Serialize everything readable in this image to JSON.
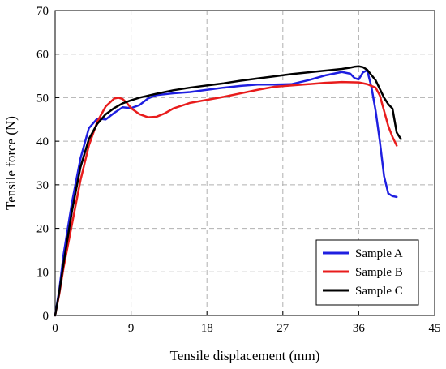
{
  "chart_data": {
    "type": "line",
    "title": "",
    "xlabel": "Tensile displacement (mm)",
    "ylabel": "Tensile force (N)",
    "xlim": [
      0,
      45
    ],
    "ylim": [
      0,
      70
    ],
    "xticks": [
      0,
      9,
      18,
      27,
      36,
      45
    ],
    "yticks": [
      0,
      10,
      20,
      30,
      40,
      50,
      60,
      70
    ],
    "grid": true,
    "grid_style": "dashed",
    "legend_position": "lower-right",
    "series": [
      {
        "name": "Sample A",
        "color": "#1f1fe0",
        "x": [
          0,
          0.5,
          1,
          2,
          3,
          4,
          5,
          6,
          7,
          8,
          9,
          10,
          11,
          12,
          14,
          16,
          18,
          20,
          22,
          24,
          26,
          28,
          30,
          32,
          34,
          35,
          35.5,
          36,
          36.5,
          37,
          37.5,
          38,
          38.5,
          39,
          39.5,
          40,
          40.5
        ],
        "y": [
          0,
          6,
          14,
          26,
          36,
          43,
          45.2,
          45,
          46.5,
          47.8,
          47.6,
          48.3,
          49.8,
          50.6,
          51,
          51.3,
          51.8,
          52.3,
          52.7,
          53,
          53,
          53.1,
          54,
          55.1,
          55.9,
          55.5,
          54.5,
          54.2,
          55.8,
          56.3,
          52.5,
          47,
          40,
          32,
          28,
          27.4,
          27.2
        ]
      },
      {
        "name": "Sample B",
        "color": "#e81c1c",
        "x": [
          0,
          0.5,
          1,
          2,
          3,
          4,
          5,
          6,
          7,
          7.5,
          8,
          8.5,
          9,
          10,
          11,
          12,
          13,
          14,
          16,
          18,
          20,
          22,
          24,
          26,
          28,
          30,
          32,
          34,
          36,
          37,
          38,
          38.5,
          39,
          39.5,
          40,
          40.5
        ],
        "y": [
          0,
          5,
          11,
          21,
          31,
          39,
          44.5,
          48,
          49.8,
          50,
          49.7,
          48.8,
          47.6,
          46.2,
          45.5,
          45.6,
          46.4,
          47.5,
          48.8,
          49.5,
          50.2,
          51,
          51.8,
          52.5,
          52.8,
          53.1,
          53.4,
          53.6,
          53.5,
          53.1,
          52.3,
          50.5,
          47,
          43.5,
          41,
          39
        ]
      },
      {
        "name": "Sample C",
        "color": "#000000",
        "x": [
          0,
          0.5,
          1,
          2,
          3,
          4,
          5,
          6,
          7,
          8,
          9,
          10,
          12,
          14,
          16,
          18,
          20,
          22,
          24,
          26,
          28,
          30,
          32,
          34,
          35,
          35.5,
          36,
          36.5,
          37,
          37.5,
          38,
          38.5,
          39,
          39.5,
          40,
          40.5,
          41
        ],
        "y": [
          0,
          5.5,
          12,
          24,
          34,
          40.5,
          44,
          46.2,
          47.6,
          48.7,
          49.4,
          50,
          50.9,
          51.7,
          52.3,
          52.8,
          53.3,
          53.9,
          54.4,
          54.9,
          55.4,
          55.8,
          56.2,
          56.6,
          56.9,
          57.1,
          57.2,
          57,
          56.4,
          55.2,
          54,
          52,
          50,
          48.5,
          47.5,
          42,
          40.5
        ]
      }
    ]
  }
}
